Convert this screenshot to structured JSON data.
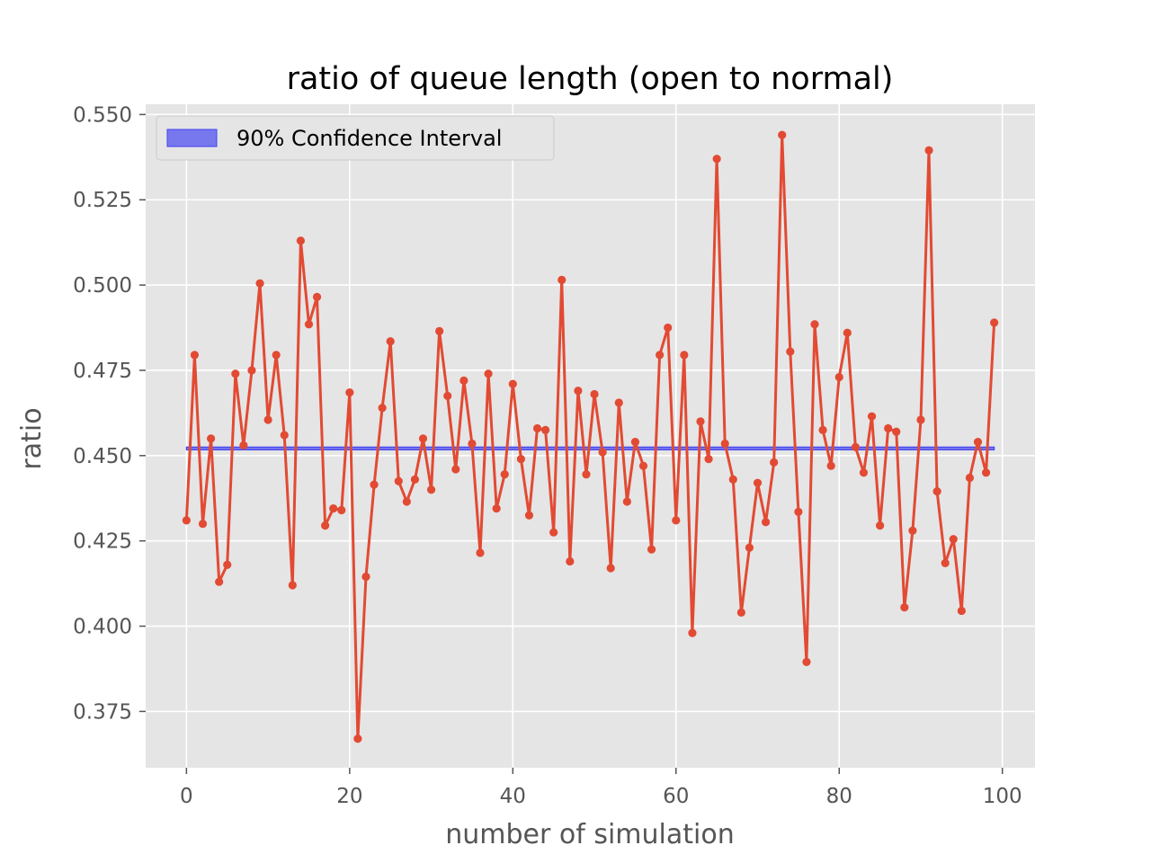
{
  "chart_data": {
    "type": "line",
    "title": "ratio of queue length (open to normal)",
    "xlabel": "number of simulation",
    "ylabel": "ratio",
    "xlim": [
      -5,
      104
    ],
    "ylim": [
      0.3585,
      0.553
    ],
    "xticks": [
      0,
      20,
      40,
      60,
      80,
      100
    ],
    "xtick_labels": [
      "0",
      "20",
      "40",
      "60",
      "80",
      "100"
    ],
    "yticks": [
      0.375,
      0.4,
      0.425,
      0.45,
      0.475,
      0.5,
      0.525,
      0.55
    ],
    "ytick_labels": [
      "0.375",
      "0.400",
      "0.425",
      "0.450",
      "0.475",
      "0.500",
      "0.525",
      "0.550"
    ],
    "grid": true,
    "legend": {
      "position": "top-left",
      "entries": [
        "90% Confidence Interval"
      ]
    },
    "colors": {
      "series": "#e24a33",
      "interval": "#4444ee",
      "background": "#e5e5e5",
      "grid": "#ffffff"
    },
    "series": [
      {
        "x": [
          0,
          1,
          2,
          3,
          4,
          5,
          6,
          7,
          8,
          9,
          10,
          11,
          12,
          13,
          14,
          15,
          16,
          17,
          18,
          19,
          20,
          21,
          22,
          23,
          24,
          25,
          26,
          27,
          28,
          29,
          30,
          31,
          32,
          33,
          34,
          35,
          36,
          37,
          38,
          39,
          40,
          41,
          42,
          43,
          44,
          45,
          46,
          47,
          48,
          49,
          50,
          51,
          52,
          53,
          54,
          55,
          56,
          57,
          58,
          59,
          60,
          61,
          62,
          63,
          64,
          65,
          66,
          67,
          68,
          69,
          70,
          71,
          72,
          73,
          74,
          75,
          76,
          77,
          78,
          79,
          80,
          81,
          82,
          83,
          84,
          85,
          86,
          87,
          88,
          89,
          90,
          91,
          92,
          93,
          94,
          95,
          96,
          97,
          98,
          99
        ],
        "values": [
          0.431,
          0.4795,
          0.43,
          0.455,
          0.413,
          0.418,
          0.474,
          0.453,
          0.475,
          0.5005,
          0.4605,
          0.4795,
          0.456,
          0.412,
          0.513,
          0.4885,
          0.4965,
          0.4295,
          0.4345,
          0.434,
          0.4685,
          0.367,
          0.4145,
          0.4415,
          0.464,
          0.4835,
          0.4425,
          0.4365,
          0.443,
          0.455,
          0.44,
          0.4865,
          0.4675,
          0.446,
          0.472,
          0.4535,
          0.4215,
          0.474,
          0.4345,
          0.4445,
          0.471,
          0.449,
          0.4325,
          0.458,
          0.4575,
          0.4275,
          0.5015,
          0.419,
          0.469,
          0.4445,
          0.468,
          0.451,
          0.417,
          0.4655,
          0.4365,
          0.454,
          0.447,
          0.4225,
          0.4795,
          0.4875,
          0.431,
          0.4795,
          0.398,
          0.46,
          0.449,
          0.537,
          0.4535,
          0.443,
          0.404,
          0.423,
          0.442,
          0.4305,
          0.448,
          0.544,
          0.4805,
          0.4335,
          0.3895,
          0.4885,
          0.4575,
          0.447,
          0.473,
          0.486,
          0.4525,
          0.445,
          0.4615,
          0.4295,
          0.458,
          0.457,
          0.4055,
          0.428,
          0.4605,
          0.5395,
          0.4395,
          0.4185,
          0.4255,
          0.4045,
          0.4435,
          0.454,
          0.445,
          0.489
        ]
      }
    ],
    "interval": {
      "x": [
        0,
        99
      ],
      "lower": 0.4517,
      "upper": 0.4525
    }
  }
}
